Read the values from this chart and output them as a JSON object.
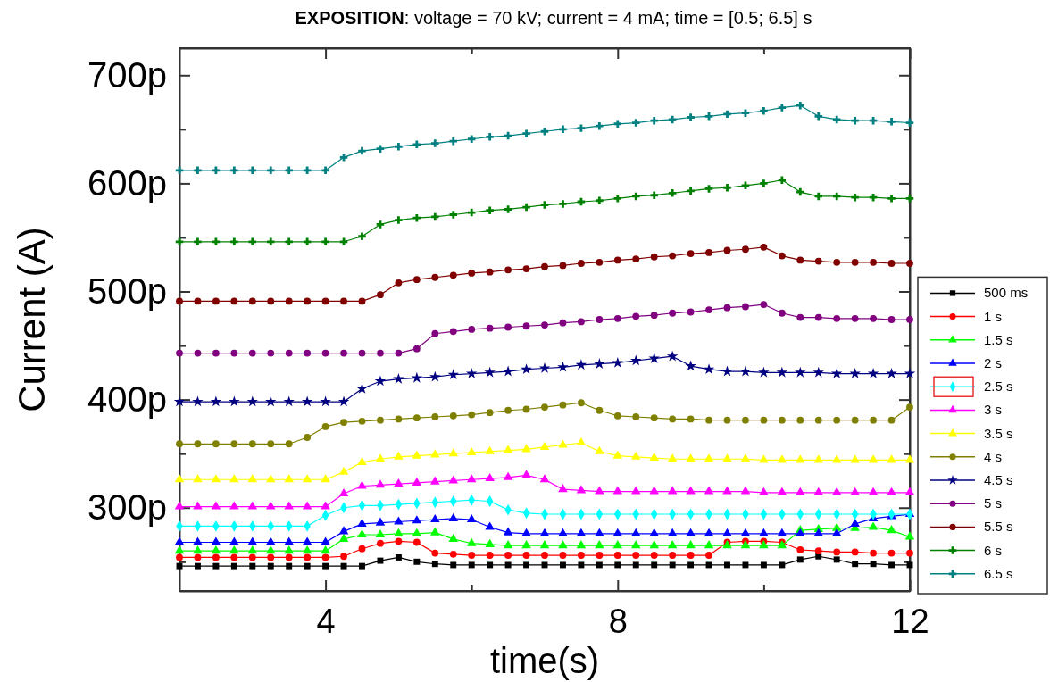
{
  "chart_data": {
    "type": "line",
    "title": "EXPOSITION: voltage = 70 kV; current = 4 mA; time = [0.5; 6.5] s",
    "xlabel": "time(s)",
    "ylabel": "Current (A)",
    "xlim": [
      2,
      12
    ],
    "xticks": [
      4,
      {
        "value": 6,
        "label": null
      },
      8,
      {
        "value": 10,
        "label": null
      },
      12
    ],
    "ylim": [
      223,
      725
    ],
    "yticks": [
      {
        "value": 250,
        "label": null
      },
      {
        "value": 300,
        "label": "300p"
      },
      {
        "value": 350,
        "label": null
      },
      {
        "value": 400,
        "label": "400p"
      },
      {
        "value": 450,
        "label": null
      },
      {
        "value": 500,
        "label": "500p"
      },
      {
        "value": 550,
        "label": null
      },
      {
        "value": 600,
        "label": "600p"
      },
      {
        "value": 650,
        "label": null
      },
      {
        "value": 700,
        "label": "700p"
      }
    ],
    "grid": false,
    "legend": "bottom right",
    "line_style": "solid",
    "x": [
      2,
      2.25,
      2.5,
      2.75,
      3,
      3.25,
      3.5,
      3.75,
      4,
      4.25,
      4.5,
      4.75,
      5,
      5.25,
      5.5,
      5.75,
      6,
      6.25,
      6.5,
      6.75,
      7,
      7.25,
      7.5,
      7.75,
      8,
      8.25,
      8.5,
      8.75,
      9,
      9.25,
      9.5,
      9.75,
      10,
      10.25,
      10.5,
      10.75,
      11,
      11.25,
      11.5,
      11.75,
      12
    ],
    "series": [
      {
        "name": "500 ms",
        "color": "#000000",
        "marker": "square",
        "values": [
          246,
          246,
          246,
          246,
          246,
          246,
          246,
          246,
          246,
          246,
          246,
          251,
          254,
          250,
          248,
          247,
          247,
          247,
          247,
          247,
          247,
          247,
          247,
          247,
          247,
          247,
          247,
          247,
          247,
          247,
          247,
          247,
          247,
          247,
          252,
          255,
          252,
          248,
          248,
          247,
          247
        ]
      },
      {
        "name": "1 s",
        "color": "#ff0000",
        "marker": "circle",
        "values": [
          254,
          254,
          254,
          254,
          254,
          254,
          254,
          254,
          254,
          255,
          262,
          267,
          269,
          268,
          258,
          257,
          256,
          256,
          256,
          256,
          256,
          256,
          256,
          256,
          256,
          256,
          256,
          256,
          256,
          256,
          268,
          269,
          269,
          268,
          261,
          260,
          259,
          259,
          258,
          258,
          258
        ]
      },
      {
        "name": "1.5 s",
        "color": "#00ff00",
        "marker": "triangle",
        "values": [
          260,
          260,
          260,
          260,
          260,
          260,
          260,
          260,
          260,
          271,
          275,
          275,
          276,
          276,
          277,
          271,
          267,
          266,
          265,
          265,
          265,
          265,
          265,
          265,
          265,
          265,
          265,
          265,
          265,
          265,
          265,
          265,
          265,
          265,
          279,
          280,
          281,
          281,
          282,
          279,
          273
        ]
      },
      {
        "name": "2 s",
        "color": "#0000ff",
        "marker": "triangle",
        "values": [
          268,
          268,
          268,
          268,
          268,
          268,
          268,
          268,
          268,
          278,
          285,
          286,
          287,
          288,
          289,
          290,
          289,
          282,
          277,
          276,
          276,
          276,
          276,
          276,
          276,
          276,
          276,
          276,
          276,
          276,
          276,
          276,
          276,
          276,
          276,
          276,
          276,
          285,
          290,
          292,
          294
        ]
      },
      {
        "name": "2.5 s",
        "color": "#00ffff",
        "marker": "diamond",
        "values": [
          283,
          283,
          283,
          283,
          283,
          283,
          283,
          283,
          293,
          300,
          302,
          302,
          303,
          304,
          305,
          306,
          307,
          306,
          298,
          295,
          294,
          294,
          294,
          294,
          294,
          294,
          294,
          294,
          294,
          294,
          294,
          294,
          294,
          294,
          294,
          294,
          294,
          294,
          294,
          294,
          294
        ]
      },
      {
        "name": "3 s",
        "color": "#ff00ff",
        "marker": "triangle",
        "values": [
          301,
          301,
          301,
          301,
          301,
          301,
          301,
          301,
          301,
          313,
          320,
          321,
          322,
          323,
          324,
          325,
          326,
          327,
          328,
          330,
          326,
          317,
          316,
          315,
          315,
          315,
          315,
          315,
          315,
          315,
          315,
          315,
          314,
          314,
          314,
          314,
          314,
          314,
          314,
          314,
          314
        ]
      },
      {
        "name": "3.5 s",
        "color": "#ffff00",
        "marker": "triangle",
        "values": [
          326,
          326,
          326,
          326,
          326,
          326,
          326,
          326,
          326,
          333,
          342,
          345,
          347,
          348,
          349,
          350,
          351,
          352,
          353,
          354,
          356,
          358,
          360,
          352,
          348,
          347,
          346,
          345,
          345,
          345,
          345,
          345,
          344,
          344,
          344,
          344,
          344,
          344,
          344,
          344,
          344
        ]
      },
      {
        "name": "4 s",
        "color": "#808000",
        "marker": "circle",
        "values": [
          359,
          359,
          359,
          359,
          359,
          359,
          359,
          365,
          375,
          379,
          380,
          381,
          382,
          383,
          384,
          385,
          386,
          388,
          390,
          391,
          393,
          395,
          397,
          390,
          385,
          384,
          383,
          382,
          382,
          381,
          381,
          381,
          381,
          381,
          381,
          381,
          381,
          381,
          381,
          381,
          393
        ]
      },
      {
        "name": "4.5 s",
        "color": "#000080",
        "marker": "star",
        "values": [
          398,
          398,
          398,
          398,
          398,
          398,
          398,
          398,
          398,
          398,
          410,
          417,
          419,
          420,
          421,
          423,
          424,
          425,
          426,
          428,
          429,
          430,
          432,
          433,
          434,
          436,
          438,
          440,
          431,
          428,
          426,
          426,
          425,
          425,
          425,
          425,
          424,
          424,
          424,
          424,
          424
        ]
      },
      {
        "name": "5 s",
        "color": "#800080",
        "marker": "circle",
        "values": [
          443,
          443,
          443,
          443,
          443,
          443,
          443,
          443,
          443,
          443,
          443,
          443,
          443,
          447,
          461,
          463,
          465,
          466,
          467,
          468,
          469,
          471,
          472,
          474,
          475,
          477,
          478,
          480,
          481,
          483,
          485,
          486,
          488,
          480,
          476,
          476,
          475,
          475,
          475,
          474,
          474
        ]
      },
      {
        "name": "5.5 s",
        "color": "#800000",
        "marker": "circle",
        "values": [
          491,
          491,
          491,
          491,
          491,
          491,
          491,
          491,
          491,
          491,
          491,
          497,
          508,
          511,
          513,
          515,
          517,
          518,
          520,
          521,
          523,
          524,
          526,
          527,
          529,
          530,
          532,
          533,
          535,
          536,
          538,
          539,
          541,
          533,
          529,
          528,
          527,
          527,
          527,
          526,
          526
        ]
      },
      {
        "name": "6 s",
        "color": "#008000",
        "marker": "cross",
        "values": [
          546,
          546,
          546,
          546,
          546,
          546,
          546,
          546,
          546,
          546,
          551,
          562,
          566,
          568,
          569,
          571,
          573,
          575,
          576,
          578,
          580,
          581,
          583,
          584,
          586,
          588,
          589,
          591,
          593,
          595,
          596,
          598,
          600,
          603,
          592,
          588,
          588,
          587,
          587,
          586,
          586
        ]
      },
      {
        "name": "6.5 s",
        "color": "#008080",
        "marker": "cross",
        "values": [
          612,
          612,
          612,
          612,
          612,
          612,
          612,
          612,
          612,
          624,
          630,
          632,
          634,
          636,
          637,
          639,
          641,
          643,
          644,
          646,
          648,
          650,
          651,
          653,
          655,
          656,
          658,
          659,
          661,
          662,
          664,
          665,
          667,
          670,
          672,
          662,
          659,
          658,
          658,
          657,
          656
        ]
      }
    ]
  }
}
